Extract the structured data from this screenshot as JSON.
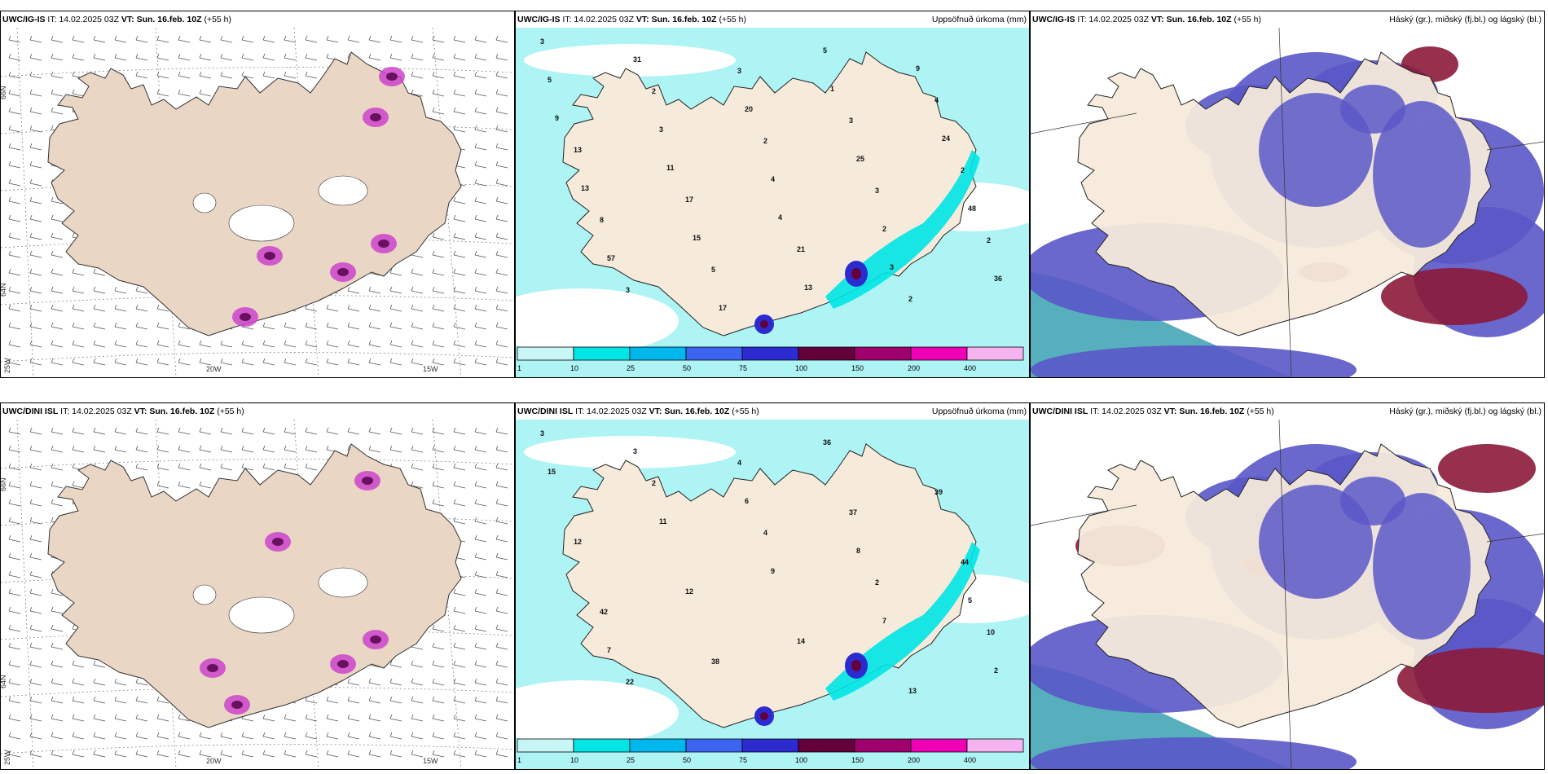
{
  "panels": [
    {
      "model": "UWC/IG-IS",
      "it": "IT: 14.02.2025 03Z",
      "vt_label": "VT:",
      "vt": "Sun. 16.feb. 10Z",
      "lead": "(+55 h)",
      "right": "",
      "kind": "wind"
    },
    {
      "model": "UWC/IG-IS",
      "it": "IT: 14.02.2025 03Z",
      "vt_label": "VT:",
      "vt": "Sun. 16.feb. 10Z",
      "lead": "(+55 h)",
      "right": "Uppsöfnuð úrkoma (mm)",
      "kind": "precip"
    },
    {
      "model": "UWC/IG-IS",
      "it": "IT: 14.02.2025 03Z",
      "vt_label": "VT:",
      "vt": "Sun. 16.feb. 10Z",
      "lead": "(+55 h)",
      "right": "Háský (gr.), miðský (fj.bl.) og lágský (bl.)",
      "kind": "cloud"
    },
    {
      "model": "UWC/DINI ISL",
      "it": "IT: 14.02.2025 03Z",
      "vt_label": "VT:",
      "vt": "Sun. 16.feb. 10Z",
      "lead": "(+55 h)",
      "right": "",
      "kind": "wind"
    },
    {
      "model": "UWC/DINI ISL",
      "it": "IT: 14.02.2025 03Z",
      "vt_label": "VT:",
      "vt": "Sun. 16.feb. 10Z",
      "lead": "(+55 h)",
      "right": "Uppsöfnuð úrkoma (mm)",
      "kind": "precip"
    },
    {
      "model": "UWC/DINI ISL",
      "it": "IT: 14.02.2025 03Z",
      "vt_label": "VT:",
      "vt": "Sun. 16.feb. 10Z",
      "lead": "(+55 h)",
      "right": "Háský (gr.), miðský (fj.bl.) og lágský (bl.)",
      "kind": "cloud"
    }
  ],
  "axis_labels": {
    "lat_66": "66N",
    "lat_64": "64N",
    "lon_25": "25W",
    "lon_20": "20W",
    "lon_15": "15W"
  },
  "precip_legend": {
    "labels": [
      "1",
      "10",
      "25",
      "50",
      "75",
      "100",
      "150",
      "200",
      "400"
    ],
    "colors": [
      "#c8f6f6",
      "#00e6e6",
      "#00b8ee",
      "#3c64f0",
      "#2b2bd0",
      "#64003c",
      "#a0006e",
      "#f000b4",
      "#f5b4f0"
    ]
  },
  "colors": {
    "land": "#f6eadb",
    "sea_precip": "#aef4f4",
    "wind_land": "#ead6c4",
    "cloud_high": "#8b1a3a",
    "cloud_mid": "#5a58c8",
    "cloud_low": "#3aa0b0"
  },
  "precip_numbers_top": [
    "3",
    "2",
    "2",
    "3",
    "2",
    "3",
    "3",
    "3",
    "2",
    "8",
    "5",
    "5",
    "4",
    "13",
    "17",
    "21",
    "2",
    "5",
    "3",
    "4",
    "2",
    "36",
    "31",
    "20",
    "25",
    "48",
    "57",
    "17",
    "1",
    "24",
    "13",
    "15",
    "13",
    "9",
    "9",
    "11",
    "4",
    "3"
  ],
  "precip_numbers_bottom": [
    "3",
    "2",
    "4",
    "2",
    "10",
    "22",
    "4",
    "37",
    "44",
    "42",
    "38",
    "36",
    "39",
    "12",
    "12",
    "14",
    "13",
    "15",
    "11",
    "9",
    "7",
    "2",
    "3",
    "6",
    "8",
    "5",
    "7"
  ]
}
